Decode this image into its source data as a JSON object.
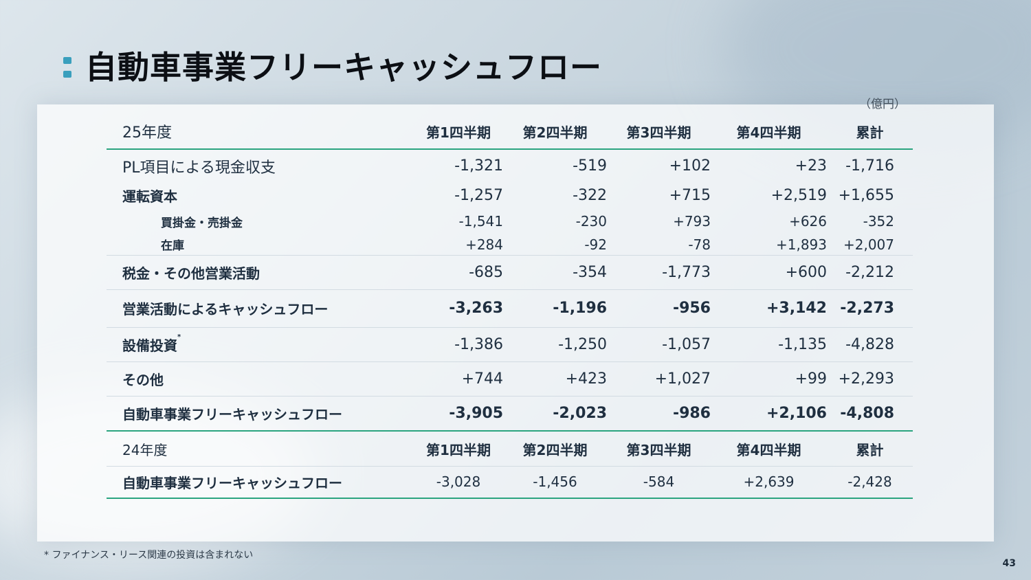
{
  "title": "自動車事業フリーキャッシュフロー",
  "unit": "（億円）",
  "fy25": {
    "year_label": "25年度",
    "headers": [
      "第1四半期",
      "第2四半期",
      "第3四半期",
      "第4四半期",
      "累計"
    ],
    "rows": [
      {
        "label": "PL項目による現金収支",
        "values": [
          "-1,321",
          "-519",
          "+102",
          "+23",
          "-1,716"
        ]
      },
      {
        "label": "運転資本",
        "values": [
          "-1,257",
          "-322",
          "+715",
          "+2,519",
          "+1,655"
        ]
      },
      {
        "label": "買掛金・売掛金",
        "values": [
          "-1,541",
          "-230",
          "+793",
          "+626",
          "-352"
        ]
      },
      {
        "label": "在庫",
        "values": [
          "+284",
          "-92",
          "-78",
          "+1,893",
          "+2,007"
        ]
      },
      {
        "label": "税金・その他営業活動",
        "values": [
          "-685",
          "-354",
          "-1,773",
          "+600",
          "-2,212"
        ]
      },
      {
        "label": "営業活動によるキャッシュフロー",
        "values": [
          "-3,263",
          "-1,196",
          "-956",
          "+3,142",
          "-2,273"
        ]
      },
      {
        "label": "設備投資",
        "label_mark": "*",
        "values": [
          "-1,386",
          "-1,250",
          "-1,057",
          "-1,135",
          "-4,828"
        ]
      },
      {
        "label": "その他",
        "values": [
          "+744",
          "+423",
          "+1,027",
          "+99",
          "+2,293"
        ]
      },
      {
        "label": "自動車事業フリーキャッシュフロー",
        "values": [
          "-3,905",
          "-2,023",
          "-986",
          "+2,106",
          "-4,808"
        ]
      }
    ]
  },
  "fy24": {
    "year_label": "24年度",
    "headers": [
      "第1四半期",
      "第2四半期",
      "第3四半期",
      "第4四半期",
      "累計"
    ],
    "rows": [
      {
        "label": "自動車事業フリーキャッシュフロー",
        "values": [
          "-3,028",
          "-1,456",
          "-584",
          "+2,639",
          "-2,428"
        ]
      }
    ]
  },
  "footnote": "* ファイナンス・リース関連の投資は含まれない",
  "page_number": "43",
  "colors": {
    "accent_green": "#2aa47f",
    "marker_blue": "#3a9fbd"
  }
}
